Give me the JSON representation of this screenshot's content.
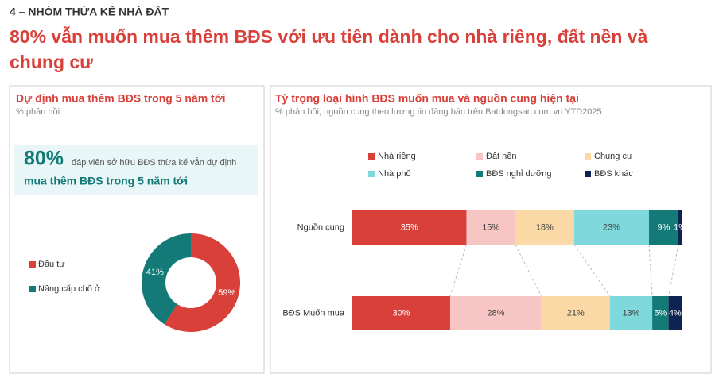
{
  "header": {
    "section": "4 – NHÓM THỪA KẾ NHÀ ĐẤT",
    "title_line1": "80% vẫn muốn mua thêm BĐS với ưu tiên dành cho nhà riêng, đất nền và",
    "title_line2": "chung cư"
  },
  "chart_data": [
    {
      "type": "donut",
      "title": "Dự định mua thêm BĐS trong 5 năm tới",
      "subtitle": "% phản hồi",
      "callout": {
        "highlight": "80%",
        "text": "đáp viên sở hữu BĐS thừa kế vẫn dự định",
        "emphasis": "mua thêm BĐS trong 5 năm tới"
      },
      "categories": [
        "Đầu tư",
        "Nâng cấp chỗ ở"
      ],
      "values": [
        59,
        41
      ],
      "value_labels": [
        "59%",
        "41%"
      ],
      "colors": [
        "#d9403a",
        "#137a77"
      ]
    },
    {
      "type": "stacked-hbar",
      "title": "Tỷ trọng loại hình BĐS muốn mua và nguồn cung hiện tại",
      "subtitle": "% phản hồi, nguồn cung theo lượng tin đăng bán trên Batdongsan.com.vn YTD2025",
      "categories": [
        "Nguồn cung",
        "BĐS Muốn mua"
      ],
      "series": [
        {
          "name": "Nhà riêng",
          "color": "#d9403a",
          "values": [
            35,
            30
          ],
          "value_labels": [
            "35%",
            "30%"
          ]
        },
        {
          "name": "Đất nền",
          "color": "#f7c6c4",
          "values": [
            15,
            28
          ],
          "value_labels": [
            "15%",
            "28%"
          ]
        },
        {
          "name": "Chung cư",
          "color": "#fbd9a6",
          "values": [
            18,
            21
          ],
          "value_labels": [
            "18%",
            "21%"
          ]
        },
        {
          "name": "Nhà phố",
          "color": "#7fd9dc",
          "values": [
            23,
            13
          ],
          "value_labels": [
            "23%",
            "13%"
          ]
        },
        {
          "name": "BĐS nghỉ dưỡng",
          "color": "#137a77",
          "values": [
            9,
            5
          ],
          "value_labels": [
            "9%",
            "5%"
          ]
        },
        {
          "name": "BĐS khác",
          "color": "#0f2353",
          "values": [
            1,
            4
          ],
          "value_labels": [
            "1%",
            "4%"
          ]
        }
      ]
    }
  ]
}
